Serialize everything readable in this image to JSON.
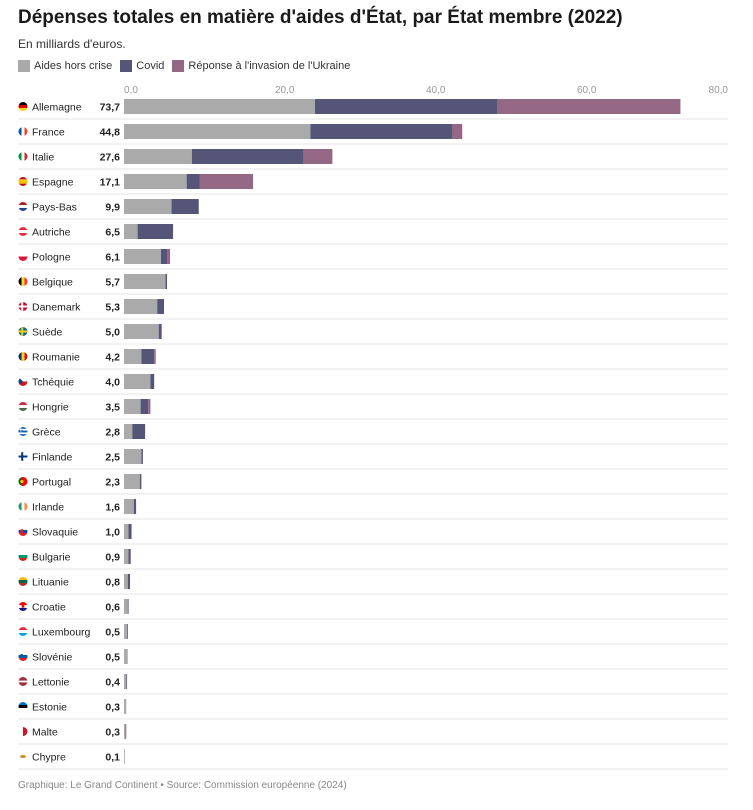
{
  "title": "Dépenses totales en matière d'aides d'État, par État membre (2022)",
  "subtitle": "En milliards d'euros.",
  "footer": "Graphique: Le Grand Continent • Source: Commission européenne (2024)",
  "colors": {
    "aides_hors_crise": "#aaaaaa",
    "covid": "#555577",
    "ukraine": "#946884",
    "row_divider": "#e6e6e6",
    "axis_text": "#999999"
  },
  "chart_data": {
    "type": "bar",
    "orientation": "horizontal",
    "stacked": true,
    "xlim": [
      0,
      80
    ],
    "x_ticks": [
      "0,0",
      "20,0",
      "40,0",
      "60,0",
      "80,0"
    ],
    "legend_position": "top-left",
    "series": [
      {
        "name": "Aides hors crise",
        "values": [
          25.3,
          24.7,
          9.0,
          8.3,
          6.3,
          1.8,
          4.9,
          5.5,
          4.4,
          4.6,
          2.3,
          3.5,
          2.2,
          1.1,
          2.3,
          2.1,
          1.3,
          0.6,
          0.6,
          0.5,
          0.5,
          0.4,
          0.5,
          0.3,
          0.3,
          0.2,
          0.1
        ]
      },
      {
        "name": "Covid",
        "values": [
          24.2,
          18.8,
          14.8,
          1.7,
          3.6,
          4.7,
          0.8,
          0.2,
          0.9,
          0.3,
          1.7,
          0.5,
          1.0,
          1.7,
          0.2,
          0.2,
          0.3,
          0.4,
          0.2,
          0.3,
          0.1,
          0.1,
          0.0,
          0.1,
          0.0,
          0.0,
          0.0
        ]
      },
      {
        "name": "Réponse à l'invasion de l'Ukraine",
        "values": [
          24.2,
          1.3,
          3.8,
          7.1,
          0.0,
          0.0,
          0.4,
          0.0,
          0.0,
          0.1,
          0.2,
          0.0,
          0.3,
          0.0,
          0.0,
          0.0,
          0.0,
          0.0,
          0.1,
          0.0,
          0.0,
          0.0,
          0.0,
          0.0,
          0.0,
          0.1,
          0.0
        ]
      }
    ],
    "rows": [
      {
        "country": "Allemagne",
        "total": "73,7",
        "flag": "de"
      },
      {
        "country": "France",
        "total": "44,8",
        "flag": "fr"
      },
      {
        "country": "Italie",
        "total": "27,6",
        "flag": "it"
      },
      {
        "country": "Espagne",
        "total": "17,1",
        "flag": "es"
      },
      {
        "country": "Pays-Bas",
        "total": "9,9",
        "flag": "nl"
      },
      {
        "country": "Autriche",
        "total": "6,5",
        "flag": "at"
      },
      {
        "country": "Pologne",
        "total": "6,1",
        "flag": "pl"
      },
      {
        "country": "Belgique",
        "total": "5,7",
        "flag": "be"
      },
      {
        "country": "Danemark",
        "total": "5,3",
        "flag": "dk"
      },
      {
        "country": "Suède",
        "total": "5,0",
        "flag": "se"
      },
      {
        "country": "Roumanie",
        "total": "4,2",
        "flag": "ro"
      },
      {
        "country": "Tchéquie",
        "total": "4,0",
        "flag": "cz"
      },
      {
        "country": "Hongrie",
        "total": "3,5",
        "flag": "hu"
      },
      {
        "country": "Grèce",
        "total": "2,8",
        "flag": "gr"
      },
      {
        "country": "Finlande",
        "total": "2,5",
        "flag": "fi"
      },
      {
        "country": "Portugal",
        "total": "2,3",
        "flag": "pt"
      },
      {
        "country": "Irlande",
        "total": "1,6",
        "flag": "ie"
      },
      {
        "country": "Slovaquie",
        "total": "1,0",
        "flag": "sk"
      },
      {
        "country": "Bulgarie",
        "total": "0,9",
        "flag": "bg"
      },
      {
        "country": "Lituanie",
        "total": "0,8",
        "flag": "lt"
      },
      {
        "country": "Croatie",
        "total": "0,6",
        "flag": "hr"
      },
      {
        "country": "Luxembourg",
        "total": "0,5",
        "flag": "lu"
      },
      {
        "country": "Slovénie",
        "total": "0,5",
        "flag": "si"
      },
      {
        "country": "Lettonie",
        "total": "0,4",
        "flag": "lv"
      },
      {
        "country": "Estonie",
        "total": "0,3",
        "flag": "ee"
      },
      {
        "country": "Malte",
        "total": "0,3",
        "flag": "mt"
      },
      {
        "country": "Chypre",
        "total": "0,1",
        "flag": "cy"
      }
    ]
  }
}
